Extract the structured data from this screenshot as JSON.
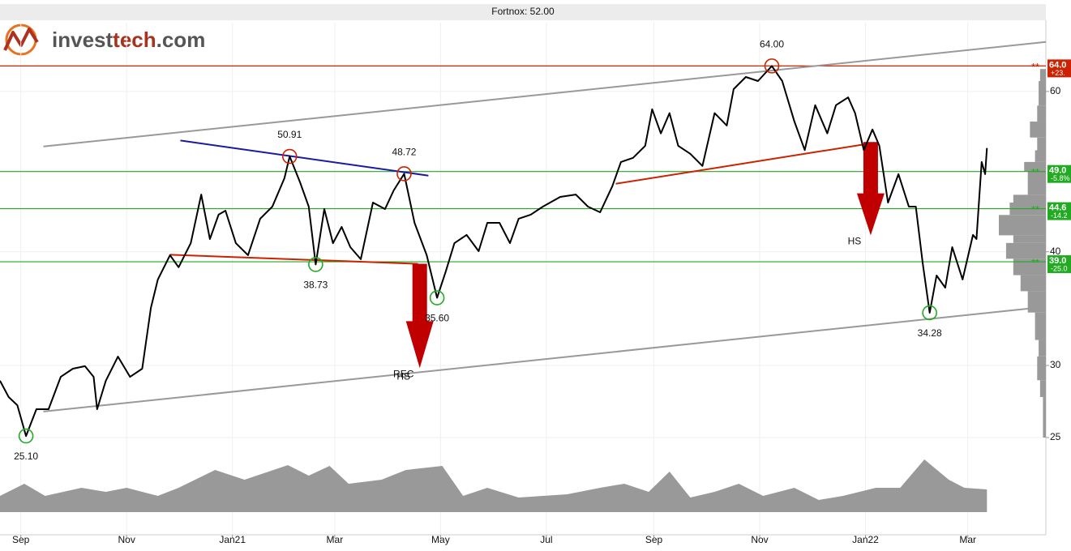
{
  "logo": [
    "invest",
    "tech",
    ".com"
  ],
  "chart_data": {
    "type": "line",
    "title": "Fortnox: 52.00",
    "color": "#000000",
    "log_scale": true,
    "grid": true,
    "xlim": [
      -12,
      591
    ],
    "ylim": [
      25,
      71.4
    ],
    "xticks": [
      {
        "value": 0,
        "label": "Sep"
      },
      {
        "value": 61,
        "label": "Nov"
      },
      {
        "value": 122,
        "label": "Jan21"
      },
      {
        "value": 181,
        "label": "Mar"
      },
      {
        "value": 242,
        "label": "May"
      },
      {
        "value": 303,
        "label": "Jul"
      },
      {
        "value": 365,
        "label": "Sep"
      },
      {
        "value": 426,
        "label": "Nov"
      },
      {
        "value": 487,
        "label": "Jan22"
      },
      {
        "value": 546,
        "label": "Mar"
      }
    ],
    "yticks": [
      25,
      30,
      40,
      60
    ],
    "x": [
      -12,
      -7,
      -2,
      3,
      9,
      16,
      23,
      30,
      37,
      42,
      44,
      49,
      56,
      63,
      70,
      75,
      79,
      86,
      91,
      98,
      104,
      109,
      114,
      118,
      124,
      131,
      138,
      145,
      152,
      155,
      161,
      166,
      170,
      175,
      180,
      185,
      190,
      196,
      203,
      210,
      215,
      221,
      227,
      234,
      240,
      245,
      250,
      257,
      264,
      269,
      276,
      282,
      287,
      294,
      301,
      311,
      320,
      327,
      334,
      341,
      346,
      353,
      360,
      364,
      369,
      374,
      379,
      386,
      393,
      400,
      407,
      411,
      418,
      425,
      433,
      439,
      446,
      452,
      458,
      465,
      470,
      477,
      481,
      486,
      491,
      495,
      500,
      506,
      512,
      516,
      520,
      524,
      528,
      533,
      537,
      543,
      549,
      551,
      554,
      556,
      557
    ],
    "values": [
      28.86,
      27.7,
      27.13,
      25.1,
      26.86,
      26.86,
      29.15,
      29.76,
      29.95,
      29.15,
      26.86,
      28.86,
      30.68,
      29.15,
      29.76,
      34.7,
      37.29,
      39.66,
      38.46,
      40.88,
      46.23,
      41.31,
      43.94,
      44.38,
      40.88,
      39.66,
      43.49,
      44.84,
      48.17,
      50.91,
      47.68,
      44.84,
      38.73,
      44.56,
      40.88,
      42.6,
      40.47,
      39.25,
      45.3,
      44.56,
      46.71,
      48.72,
      43.04,
      39.66,
      35.6,
      38.05,
      40.88,
      41.74,
      40.06,
      43.04,
      43.04,
      40.88,
      43.49,
      43.94,
      44.84,
      45.95,
      46.23,
      44.84,
      44.2,
      47.2,
      50.2,
      50.72,
      52.3,
      57.36,
      53.96,
      56.8,
      52.3,
      51.25,
      49.7,
      56.8,
      55.05,
      60.35,
      62.24,
      61.6,
      64.0,
      61.6,
      55.62,
      51.73,
      57.95,
      53.96,
      57.95,
      59.1,
      56.8,
      51.73,
      54.5,
      52.3,
      45.3,
      48.68,
      44.84,
      44.84,
      38.85,
      34.28,
      37.67,
      36.53,
      40.47,
      37.29,
      41.74,
      41.31,
      50.2,
      48.68,
      52.0
    ],
    "trend_lines": [
      {
        "x": [
          13,
          591
        ],
        "values": [
          52.2,
          68.0
        ],
        "color": "#999999"
      },
      {
        "x": [
          13,
          591
        ],
        "values": [
          26.7,
          34.8
        ],
        "color": "#999999"
      },
      {
        "x": [
          92,
          235
        ],
        "values": [
          53.0,
          48.5
        ],
        "color": "#1a1aa0"
      },
      {
        "x": [
          86,
          229
        ],
        "values": [
          39.7,
          38.8
        ],
        "color": "#cc2200"
      },
      {
        "x": [
          343,
          492
        ],
        "values": [
          47.5,
          52.7
        ],
        "color": "#cc2200"
      }
    ],
    "level_marker": "**",
    "levels": [
      {
        "value": 64,
        "label": "64.0",
        "change": "+23.",
        "color": "#cc2200"
      },
      {
        "value": 49,
        "label": "49.0",
        "change": "-5.8%",
        "color": "#22aa22"
      },
      {
        "value": 44.6,
        "label": "44.6",
        "change": "-14.2",
        "color": "#22aa22"
      },
      {
        "value": 39,
        "label": "39.0",
        "change": "-25.0",
        "color": "#22aa22"
      }
    ],
    "annotations": [
      {
        "x": 3,
        "value": 25.1,
        "label": "25.10",
        "kind": "low",
        "color": "#22aa22"
      },
      {
        "x": 155,
        "value": 50.91,
        "label": "50.91",
        "kind": "high",
        "color": "#cc2200"
      },
      {
        "x": 170,
        "value": 38.73,
        "label": "38.73",
        "kind": "low",
        "color": "#22aa22"
      },
      {
        "x": 221,
        "value": 48.72,
        "label": "48.72",
        "kind": "high",
        "color": "#cc2200"
      },
      {
        "x": 240,
        "value": 35.6,
        "label": "35.60",
        "kind": "low",
        "color": "#22aa22"
      },
      {
        "x": 433,
        "value": 64.0,
        "label": "64.00",
        "kind": "high",
        "color": "#cc2200"
      },
      {
        "x": 524,
        "value": 34.28,
        "label": "34.28",
        "kind": "low",
        "color": "#22aa22"
      }
    ],
    "arrows": [
      {
        "x": 230,
        "values": [
          38.8,
          29.8
        ],
        "labels": [
          "REC",
          "HS"
        ],
        "color": "#c00000"
      },
      {
        "x": 490,
        "values": [
          52.8,
          41.7
        ],
        "labels": [
          "HS"
        ],
        "color": "#c00000"
      }
    ],
    "volume": {
      "color": "#999999",
      "x": [
        -12,
        2,
        14,
        35,
        49,
        61,
        79,
        91,
        112,
        129,
        154,
        166,
        178,
        189,
        208,
        222,
        243,
        255,
        269,
        287,
        315,
        334,
        348,
        362,
        374,
        386,
        400,
        414,
        428,
        446,
        460,
        474,
        493,
        507,
        521,
        535,
        544,
        557
      ],
      "values": [
        20,
        35,
        20,
        30,
        25,
        30,
        20,
        30,
        52,
        40,
        58,
        45,
        57,
        35,
        40,
        52,
        57,
        20,
        30,
        18,
        22,
        30,
        35,
        25,
        50,
        18,
        25,
        35,
        20,
        30,
        15,
        20,
        30,
        30,
        65,
        40,
        30,
        28
      ]
    },
    "price_distribution": {
      "color": "#999999",
      "bins": [
        63.5,
        61.6,
        57.9,
        55.6,
        53.4,
        51.7,
        50.2,
        49.0,
        46.2,
        45.3,
        43.9,
        41.7,
        40.9,
        39.3,
        37.7,
        36.2,
        34.3,
        32.0,
        30.7,
        28.9,
        27.7,
        25
      ],
      "counts": [
        8,
        10,
        12,
        22,
        12,
        15,
        30,
        25,
        45,
        50,
        65,
        45,
        55,
        45,
        35,
        25,
        15,
        10,
        12,
        8,
        4
      ]
    }
  }
}
